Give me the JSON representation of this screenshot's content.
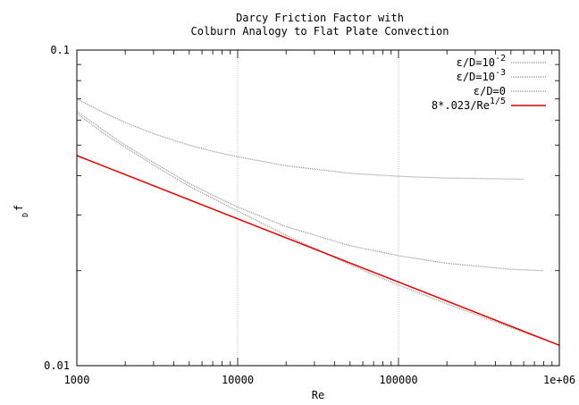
{
  "chart_data": {
    "type": "line",
    "title": [
      "Darcy Friction Factor with",
      "Colburn Analogy to Flat Plate Convection"
    ],
    "xlabel": "Re",
    "ylabel": "f",
    "ylabel_sub": "D",
    "xscale": "log",
    "yscale": "log",
    "xlim": [
      1000,
      1000000
    ],
    "ylim": [
      0.01,
      0.1
    ],
    "x_ticks": [
      {
        "value": 1000,
        "label": "1000"
      },
      {
        "value": 10000,
        "label": "10000"
      },
      {
        "value": 100000,
        "label": "100000"
      },
      {
        "value": 1000000,
        "label": "1e+06"
      }
    ],
    "y_ticks": [
      {
        "value": 0.01,
        "label": "0.01"
      },
      {
        "value": 0.1,
        "label": "0.1"
      }
    ],
    "grid": "x-major",
    "legend_position": "top-right",
    "series": [
      {
        "name": "ε/D=10^-2",
        "legend_main": "ε/D=10",
        "legend_sup": "-2",
        "color": "#909090",
        "style": "dotted",
        "x": [
          1000,
          1500,
          2000,
          3000,
          5000,
          7000,
          10000,
          20000,
          50000,
          100000,
          200000,
          600000
        ],
        "y": [
          0.07,
          0.063,
          0.059,
          0.0543,
          0.05,
          0.0478,
          0.0459,
          0.043,
          0.0407,
          0.0398,
          0.0393,
          0.039
        ]
      },
      {
        "name": "ε/D=10^-3",
        "legend_main": "ε/D=10",
        "legend_sup": "-3",
        "color": "#909090",
        "style": "dotted",
        "x": [
          1000,
          1500,
          2000,
          3000,
          5000,
          7000,
          10000,
          20000,
          50000,
          100000,
          200000,
          500000,
          800000
        ],
        "y": [
          0.064,
          0.0552,
          0.05,
          0.044,
          0.0378,
          0.0347,
          0.0318,
          0.0276,
          0.024,
          0.0223,
          0.0211,
          0.0202,
          0.02
        ]
      },
      {
        "name": "ε/D=0",
        "legend_main": "ε/D=0",
        "legend_sup": "",
        "color": "#909090",
        "style": "dotted",
        "x": [
          1000,
          1500,
          2000,
          3000,
          5000,
          7000,
          10000,
          20000,
          50000,
          100000,
          200000,
          500000,
          800000
        ],
        "y": [
          0.063,
          0.054,
          0.0492,
          0.0432,
          0.037,
          0.0339,
          0.0309,
          0.0259,
          0.0209,
          0.018,
          0.0157,
          0.0132,
          0.0121
        ]
      },
      {
        "name": "8*.023/Re^1/5",
        "legend_main": "8*.023/Re",
        "legend_sup": "1/5",
        "color": "#e00000",
        "style": "solid",
        "x": [
          1000,
          1000000
        ],
        "y": [
          0.0463,
          0.0116
        ]
      }
    ]
  }
}
